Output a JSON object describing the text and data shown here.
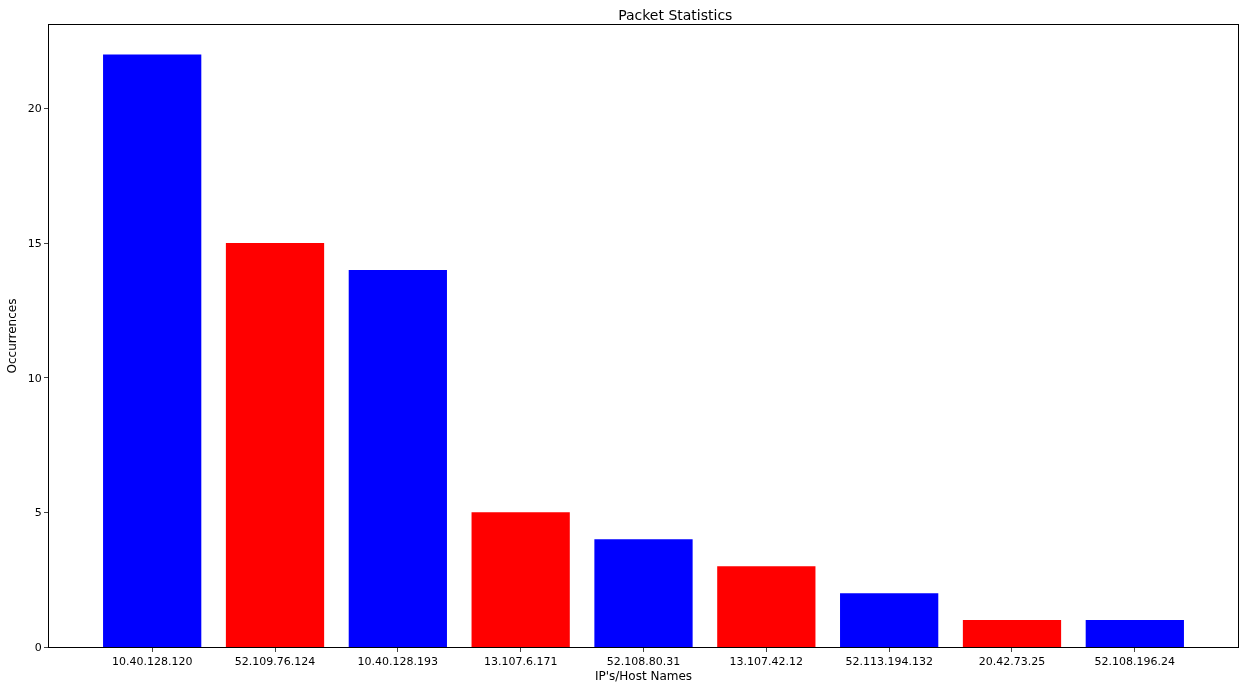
{
  "chart_data": {
    "type": "bar",
    "title": "Packet Statistics",
    "xlabel": "IP's/Host Names",
    "ylabel": "Occurrences",
    "categories": [
      "10.40.128.120",
      "52.109.76.124",
      "10.40.128.193",
      "13.107.6.171",
      "52.108.80.31",
      "13.107.42.12",
      "52.113.194.132",
      "20.42.73.25",
      "52.108.196.24"
    ],
    "values": [
      22,
      15,
      14,
      5,
      4,
      3,
      2,
      1,
      1
    ],
    "colors": [
      "#0000ff",
      "#ff0000",
      "#0000ff",
      "#ff0000",
      "#0000ff",
      "#ff0000",
      "#0000ff",
      "#ff0000",
      "#0000ff"
    ],
    "ylim": [
      0,
      23.1
    ],
    "yticks": [
      0,
      5,
      10,
      15,
      20
    ],
    "legend": false
  }
}
